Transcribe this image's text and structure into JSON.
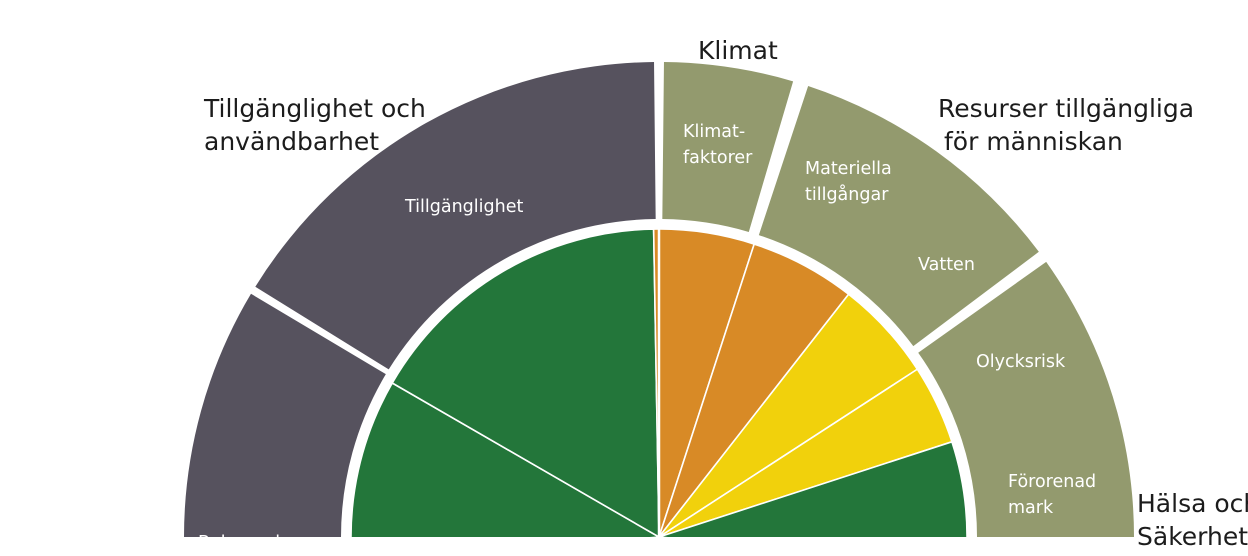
{
  "categories": {
    "tillganglighet": {
      "line1": "Tillgänglighet och",
      "line2": "användbarhet"
    },
    "klimat": {
      "line1": "Klimat"
    },
    "resurser": {
      "line1": "Resurser tillgängliga",
      "line2": "för människan"
    },
    "halsa": {
      "line1": "Hälsa och",
      "line2": "Säkerhet"
    }
  },
  "outer_segments": {
    "tillganglighet": "Tillgänglighet",
    "bebyggelse_partial": "Bebyggelse",
    "klimatfaktorer": {
      "line1": "Klimat-",
      "line2": "faktorer"
    },
    "materiella": {
      "line1": "Materiella",
      "line2": "tillgångar"
    },
    "vatten": "Vatten",
    "olycksrisk": "Olycksrisk",
    "fororenad": {
      "line1": "Förorenad",
      "line2": "mark"
    }
  },
  "colors": {
    "outer_gray": "#56525e",
    "outer_olive": "#939a6e",
    "inner_green": "#23763a",
    "inner_orange": "#d88a26",
    "inner_yellow": "#f1d10c",
    "separator": "#ffffff"
  },
  "inner_wedges": [
    {
      "name": "inner-wedge-green-left",
      "color": "inner_green"
    },
    {
      "name": "inner-wedge-green-upper",
      "color": "inner_green"
    },
    {
      "name": "inner-wedge-orange-1",
      "color": "inner_orange"
    },
    {
      "name": "inner-wedge-orange-2",
      "color": "inner_orange"
    },
    {
      "name": "inner-wedge-yellow-1",
      "color": "inner_yellow"
    },
    {
      "name": "inner-wedge-yellow-2",
      "color": "inner_yellow"
    },
    {
      "name": "inner-wedge-green-right",
      "color": "inner_green"
    }
  ],
  "outer_rings": [
    {
      "name": "outer-segment-bebyggelse",
      "color": "outer_gray"
    },
    {
      "name": "outer-segment-tillganglighet",
      "color": "outer_gray"
    },
    {
      "name": "outer-segment-klimatfaktorer",
      "color": "outer_olive"
    },
    {
      "name": "outer-segment-materiella-vatten",
      "color": "outer_olive"
    },
    {
      "name": "outer-segment-olycksrisk-fororenad",
      "color": "outer_olive"
    }
  ]
}
